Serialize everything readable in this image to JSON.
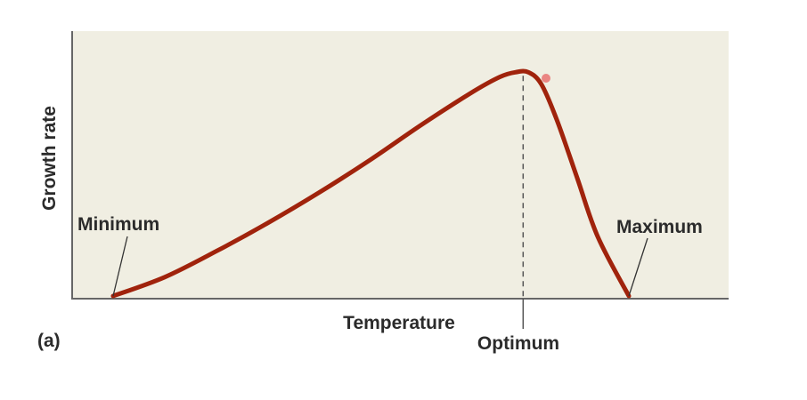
{
  "chart_data": {
    "type": "line",
    "title": "",
    "xlabel": "Temperature",
    "ylabel": "Growth rate",
    "panel_label": "(a)",
    "grid": false,
    "legend": "none",
    "xlim": [
      0,
      100
    ],
    "ylim": [
      0,
      100
    ],
    "series": [
      {
        "color": "#a0230c",
        "x": [
          0,
          10,
          20,
          30,
          40,
          50,
          60,
          70,
          75,
          78,
          80.5,
          83,
          86,
          90,
          94,
          100
        ],
        "y": [
          0,
          8,
          19,
          31,
          44,
          58,
          73,
          87,
          93,
          95,
          95,
          90,
          75,
          50,
          25,
          0
        ]
      }
    ],
    "annotations": [
      {
        "text": "Minimum",
        "x": 0,
        "y": 0
      },
      {
        "text": "Optimum",
        "x": 79.5,
        "y": 95
      },
      {
        "text": "Maximum",
        "x": 100,
        "y": 0
      }
    ],
    "colors": {
      "plot_background": "#f0eee2",
      "axis": "#666666",
      "curve": "#a0230c",
      "marker": "#e86a6a"
    }
  }
}
